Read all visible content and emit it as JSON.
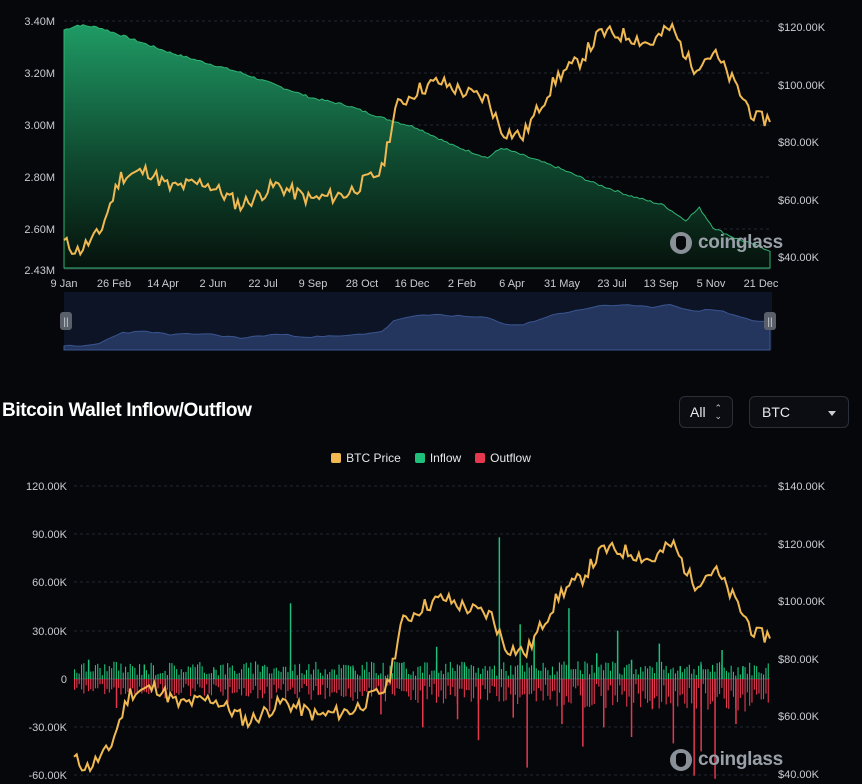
{
  "top_chart": {
    "left_axis_ticks": [
      "3.40M",
      "3.20M",
      "3.00M",
      "2.80M",
      "2.60M",
      "2.43M"
    ],
    "right_axis_ticks": [
      "$120.00K",
      "$100.00K",
      "$80.00K",
      "$60.00K",
      "$40.00K"
    ],
    "x_axis_ticks": [
      "9 Jan",
      "26 Feb",
      "14 Apr",
      "2 Jun",
      "22 Jul",
      "9 Sep",
      "28 Oct",
      "16 Dec",
      "2 Feb",
      "6 Apr",
      "31 May",
      "23 Jul",
      "13 Sep",
      "5 Nov",
      "21 Dec"
    ],
    "watermark": "coinglass"
  },
  "section": {
    "title": "Bitcoin Wallet Inflow/Outflow",
    "range_select": "All",
    "coin_select": "BTC"
  },
  "legend": [
    {
      "label": "BTC Price",
      "color": "#f0b952"
    },
    {
      "label": "Inflow",
      "color": "#1ec07a"
    },
    {
      "label": "Outflow",
      "color": "#e5384f"
    }
  ],
  "bottom_chart": {
    "left_axis_ticks": [
      "120.00K",
      "90.00K",
      "60.00K",
      "30.00K",
      "0",
      "-30.00K",
      "-60.00K"
    ],
    "right_axis_ticks": [
      "$140.00K",
      "$120.00K",
      "$100.00K",
      "$80.00K",
      "$60.00K",
      "$40.00K"
    ],
    "watermark": "coinglass"
  },
  "chart_data": [
    {
      "type": "area",
      "ylim_left": [
        2430000,
        3400000
      ],
      "ylim_right": [
        40000,
        120000
      ],
      "series": [
        {
          "axis": "left",
          "color": "#1e9a62",
          "x": [
            0,
            0.02,
            0.05,
            0.1,
            0.15,
            0.2,
            0.25,
            0.3,
            0.35,
            0.4,
            0.45,
            0.5,
            0.55,
            0.6,
            0.62,
            0.65,
            0.7,
            0.75,
            0.8,
            0.85,
            0.88,
            0.9,
            0.92,
            0.95,
            1
          ],
          "values": [
            3380000,
            3400000,
            3390000,
            3340000,
            3290000,
            3250000,
            3210000,
            3160000,
            3110000,
            3080000,
            3030000,
            2990000,
            2920000,
            2870000,
            2910000,
            2880000,
            2830000,
            2770000,
            2720000,
            2680000,
            2620000,
            2670000,
            2590000,
            2550000,
            2500000
          ]
        },
        {
          "axis": "right",
          "color": "#f0b952",
          "x": [
            0,
            0.02,
            0.05,
            0.08,
            0.12,
            0.15,
            0.2,
            0.25,
            0.3,
            0.35,
            0.4,
            0.45,
            0.47,
            0.5,
            0.53,
            0.57,
            0.6,
            0.62,
            0.65,
            0.68,
            0.7,
            0.73,
            0.76,
            0.8,
            0.83,
            0.86,
            0.89,
            0.92,
            0.95,
            0.98,
            1
          ],
          "values": [
            45000,
            42000,
            48000,
            68000,
            70000,
            64000,
            66000,
            58000,
            65000,
            60000,
            62000,
            70000,
            92000,
            98000,
            101000,
            97000,
            95000,
            84000,
            82000,
            95000,
            103000,
            108000,
            118000,
            117000,
            114000,
            120000,
            106000,
            111000,
            100000,
            88000,
            88000
          ]
        }
      ]
    },
    {
      "type": "bar",
      "ylim_left": [
        -60000,
        120000
      ],
      "ylim_right": [
        40000,
        140000
      ],
      "price": {
        "name": "BTC Price",
        "x": [
          0,
          0.02,
          0.05,
          0.08,
          0.12,
          0.15,
          0.2,
          0.25,
          0.3,
          0.35,
          0.4,
          0.45,
          0.47,
          0.5,
          0.53,
          0.57,
          0.6,
          0.62,
          0.65,
          0.68,
          0.7,
          0.73,
          0.76,
          0.8,
          0.83,
          0.86,
          0.89,
          0.92,
          0.95,
          0.98,
          1
        ],
        "values": [
          45000,
          42000,
          48000,
          68000,
          70000,
          64000,
          66000,
          58000,
          65000,
          60000,
          62000,
          70000,
          92000,
          98000,
          101000,
          97000,
          95000,
          84000,
          82000,
          95000,
          103000,
          108000,
          118000,
          117000,
          114000,
          120000,
          106000,
          111000,
          100000,
          88000,
          88000
        ]
      },
      "inflow_spikes": {
        "name": "Inflow",
        "x": [
          0.02,
          0.1,
          0.2,
          0.27,
          0.31,
          0.4,
          0.47,
          0.52,
          0.56,
          0.61,
          0.64,
          0.66,
          0.71,
          0.75,
          0.78,
          0.8,
          0.84,
          0.87,
          0.9,
          0.93,
          0.96
        ],
        "values": [
          12000,
          9000,
          6000,
          8000,
          47000,
          7000,
          10000,
          20000,
          9000,
          88000,
          34000,
          25000,
          44000,
          16000,
          30000,
          12000,
          22000,
          8000,
          9000,
          18000,
          8000
        ]
      },
      "outflow_spikes": {
        "name": "Outflow",
        "x": [
          0.06,
          0.13,
          0.22,
          0.28,
          0.35,
          0.44,
          0.5,
          0.55,
          0.58,
          0.63,
          0.65,
          0.7,
          0.73,
          0.76,
          0.8,
          0.83,
          0.86,
          0.89,
          0.9,
          0.92,
          0.95
        ],
        "values": [
          -18000,
          -12000,
          -15000,
          -20000,
          -10000,
          -22000,
          -30000,
          -25000,
          -38000,
          -24000,
          -55000,
          -28000,
          -42000,
          -30000,
          -36000,
          -18000,
          -40000,
          -60000,
          -45000,
          -62000,
          -28000
        ]
      }
    }
  ]
}
